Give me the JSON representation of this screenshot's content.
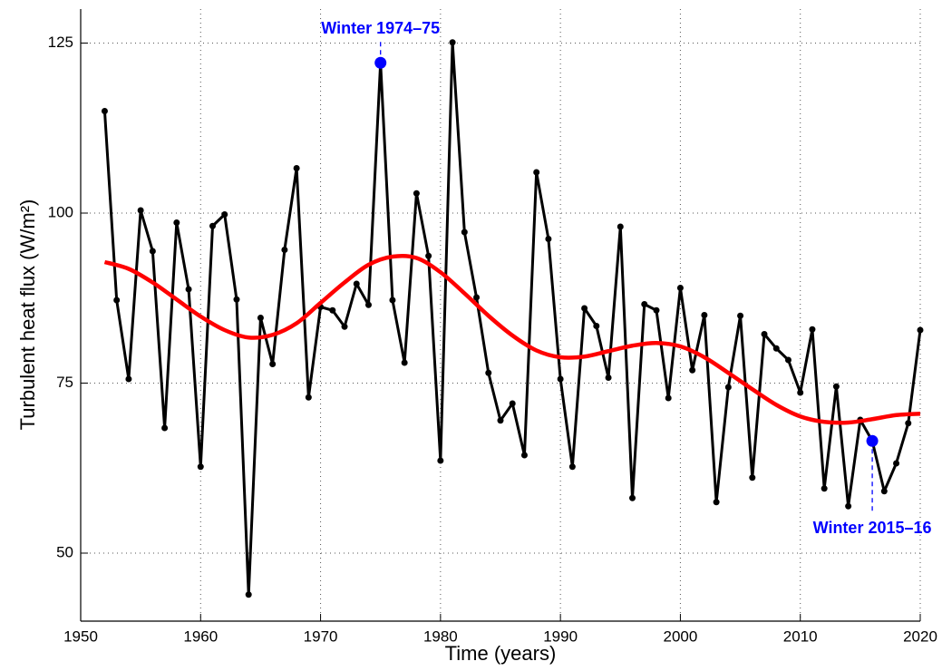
{
  "chart_data": {
    "type": "line",
    "xlabel": "Time (years)",
    "ylabel": "Turbulent heat flux (W/m²)",
    "xlim": [
      1950,
      2020
    ],
    "xticks": [
      1950,
      1960,
      1970,
      1980,
      1990,
      2000,
      2010,
      2020
    ],
    "ylim": [
      40,
      130
    ],
    "yticks": [
      50,
      75,
      100,
      125
    ],
    "grid": true,
    "series": [
      {
        "color": "#000000",
        "markers": true,
        "x": [
          1952,
          1953,
          1954,
          1955,
          1956,
          1957,
          1958,
          1959,
          1960,
          1961,
          1962,
          1963,
          1964,
          1965,
          1966,
          1967,
          1968,
          1969,
          1970,
          1971,
          1972,
          1973,
          1974,
          1975,
          1976,
          1977,
          1978,
          1979,
          1980,
          1981,
          1982,
          1983,
          1984,
          1985,
          1986,
          1987,
          1988,
          1989,
          1990,
          1991,
          1992,
          1993,
          1994,
          1995,
          1996,
          1997,
          1998,
          1999,
          2000,
          2001,
          2002,
          2003,
          2004,
          2005,
          2006,
          2007,
          2008,
          2009,
          2010,
          2011,
          2012,
          2013,
          2014,
          2015,
          2016,
          2017,
          2018,
          2019,
          2020
        ],
        "values": [
          115,
          87.2,
          75.6,
          100.4,
          94.4,
          68.4,
          98.6,
          88.8,
          62.7,
          98.1,
          99.8,
          87.3,
          43.9,
          84.6,
          77.8,
          94.6,
          106.6,
          72.9,
          86.2,
          85.7,
          83.3,
          89.6,
          86.5,
          122.1,
          87.2,
          78,
          102.9,
          93.7,
          63.6,
          125.1,
          97.2,
          87.6,
          76.5,
          69.5,
          72,
          64.4,
          106,
          96.2,
          75.6,
          62.7,
          86,
          83.4,
          75.8,
          98,
          58.1,
          86.6,
          85.7,
          72.8,
          89,
          76.9,
          85,
          57.5,
          74.4,
          84.9,
          61.1,
          82.2,
          80.1,
          78.4,
          73.6,
          82.9,
          59.5,
          74.5,
          56.9,
          69.6,
          66.5,
          59.1,
          63.2,
          69.1,
          82.8
        ]
      },
      {
        "color": "#ff0000",
        "markers": false,
        "x": [
          1952,
          1954,
          1956,
          1958,
          1960,
          1962,
          1964,
          1966,
          1968,
          1970,
          1972,
          1974,
          1976,
          1978,
          1980,
          1982,
          1984,
          1986,
          1988,
          1990,
          1992,
          1994,
          1996,
          1998,
          2000,
          2002,
          2004,
          2006,
          2008,
          2010,
          2012,
          2014,
          2016,
          2018,
          2020
        ],
        "values": [
          92.8,
          91.8,
          89.8,
          87.3,
          84.8,
          82.8,
          81.7,
          82.1,
          83.8,
          86.8,
          89.8,
          92.4,
          93.6,
          93.4,
          91.3,
          88.2,
          84.9,
          82,
          79.8,
          78.8,
          78.9,
          79.7,
          80.5,
          80.9,
          80.4,
          78.8,
          76.5,
          74.1,
          71.8,
          70.1,
          69.3,
          69.2,
          69.7,
          70.3,
          70.5
        ]
      }
    ],
    "highlights": {
      "color": "#0000ff",
      "x": [
        1975,
        2016
      ],
      "values": [
        122.1,
        66.5
      ],
      "labels": [
        "Winter 1974–75",
        "Winter 2015–16"
      ]
    }
  }
}
